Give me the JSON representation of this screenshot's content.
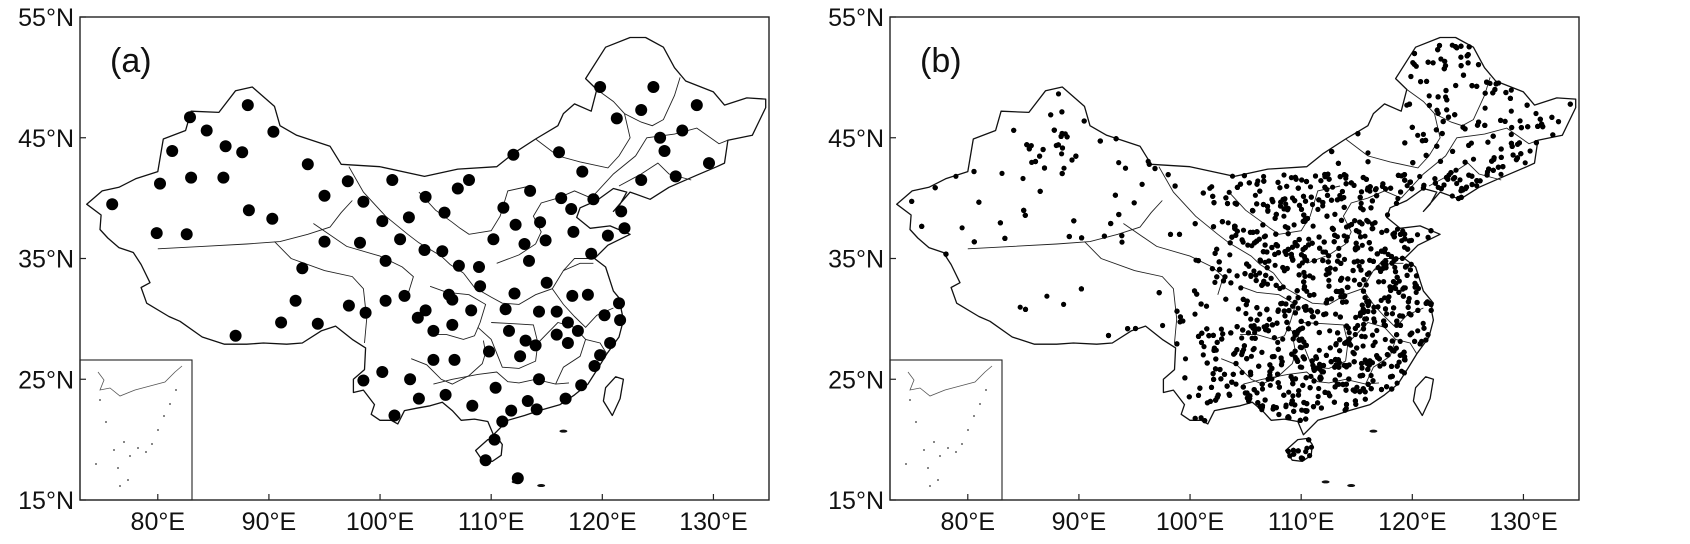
{
  "panels": [
    {
      "label": "(a)",
      "lat_ticks": [
        "55°N",
        "45°N",
        "35°N",
        "25°N",
        "15°N"
      ],
      "lon_ticks": [
        "80°E",
        "90°E",
        "100°E",
        "110°E",
        "120°E",
        "130°E"
      ]
    },
    {
      "label": "(b)",
      "lat_ticks": [
        "55°N",
        "45°N",
        "35°N",
        "25°N",
        "15°N"
      ],
      "lon_ticks": [
        "80°E",
        "90°E",
        "100°E",
        "110°E",
        "120°E",
        "130°E"
      ]
    }
  ],
  "map": {
    "lon_range": [
      73,
      135
    ],
    "lat_range": [
      15,
      55
    ],
    "lat_tick_values": [
      55,
      45,
      35,
      25,
      15
    ],
    "lon_tick_values": [
      80,
      90,
      100,
      110,
      120,
      130
    ],
    "colors": {
      "marker": "#000000",
      "land": "#ffffff",
      "boundary": "#111111"
    }
  },
  "stations_a": [
    [
      75.9,
      39.5
    ],
    [
      80.2,
      41.2
    ],
    [
      79.9,
      37.1
    ],
    [
      82.6,
      37.0
    ],
    [
      81.3,
      43.9
    ],
    [
      82.9,
      46.7
    ],
    [
      84.4,
      45.6
    ],
    [
      86.1,
      44.3
    ],
    [
      87.6,
      43.8
    ],
    [
      83.0,
      41.7
    ],
    [
      85.9,
      41.7
    ],
    [
      88.2,
      39.0
    ],
    [
      88.1,
      47.7
    ],
    [
      90.4,
      45.5
    ],
    [
      90.3,
      38.3
    ],
    [
      93.5,
      42.8
    ],
    [
      95.0,
      40.2
    ],
    [
      97.1,
      41.4
    ],
    [
      98.5,
      39.7
    ],
    [
      101.1,
      41.5
    ],
    [
      102.6,
      38.4
    ],
    [
      100.2,
      38.1
    ],
    [
      105.8,
      38.8
    ],
    [
      104.1,
      40.1
    ],
    [
      107.0,
      40.8
    ],
    [
      108.0,
      41.5
    ],
    [
      111.1,
      39.2
    ],
    [
      112.0,
      43.6
    ],
    [
      113.5,
      40.6
    ],
    [
      116.1,
      43.8
    ],
    [
      118.2,
      42.2
    ],
    [
      119.8,
      49.2
    ],
    [
      121.3,
      46.6
    ],
    [
      123.5,
      47.3
    ],
    [
      124.6,
      49.2
    ],
    [
      127.2,
      45.6
    ],
    [
      128.5,
      47.7
    ],
    [
      125.6,
      43.9
    ],
    [
      126.6,
      41.8
    ],
    [
      129.6,
      42.9
    ],
    [
      123.5,
      41.5
    ],
    [
      121.7,
      38.9
    ],
    [
      119.2,
      39.9
    ],
    [
      117.4,
      37.2
    ],
    [
      117.2,
      39.1
    ],
    [
      116.3,
      40.0
    ],
    [
      114.4,
      38.0
    ],
    [
      113.0,
      36.2
    ],
    [
      112.2,
      37.8
    ],
    [
      110.2,
      36.6
    ],
    [
      108.9,
      34.3
    ],
    [
      107.1,
      34.4
    ],
    [
      105.6,
      35.6
    ],
    [
      104.0,
      35.7
    ],
    [
      101.8,
      36.6
    ],
    [
      98.2,
      36.3
    ],
    [
      95.0,
      36.4
    ],
    [
      93.0,
      34.2
    ],
    [
      92.4,
      31.5
    ],
    [
      91.1,
      29.7
    ],
    [
      94.4,
      29.6
    ],
    [
      97.2,
      31.1
    ],
    [
      98.7,
      30.5
    ],
    [
      100.5,
      31.5
    ],
    [
      102.2,
      31.9
    ],
    [
      103.4,
      30.1
    ],
    [
      104.1,
      30.7
    ],
    [
      104.8,
      29.0
    ],
    [
      106.5,
      29.5
    ],
    [
      106.5,
      31.6
    ],
    [
      108.2,
      30.7
    ],
    [
      109.8,
      27.3
    ],
    [
      111.3,
      30.8
    ],
    [
      112.1,
      32.1
    ],
    [
      113.4,
      34.8
    ],
    [
      114.3,
      30.6
    ],
    [
      115.9,
      30.6
    ],
    [
      116.9,
      29.7
    ],
    [
      117.3,
      31.9
    ],
    [
      118.7,
      32.0
    ],
    [
      120.2,
      30.3
    ],
    [
      121.5,
      31.3
    ],
    [
      121.6,
      29.9
    ],
    [
      120.7,
      28.0
    ],
    [
      119.3,
      26.1
    ],
    [
      118.1,
      24.5
    ],
    [
      116.9,
      28.0
    ],
    [
      115.9,
      28.7
    ],
    [
      114.0,
      27.8
    ],
    [
      113.1,
      28.2
    ],
    [
      112.6,
      26.9
    ],
    [
      111.6,
      29.0
    ],
    [
      110.4,
      24.3
    ],
    [
      113.3,
      23.2
    ],
    [
      114.1,
      22.5
    ],
    [
      116.7,
      23.4
    ],
    [
      110.3,
      20.0
    ],
    [
      109.5,
      18.3
    ],
    [
      108.3,
      22.8
    ],
    [
      106.7,
      26.6
    ],
    [
      104.8,
      26.6
    ],
    [
      102.7,
      25.0
    ],
    [
      100.2,
      25.6
    ],
    [
      98.5,
      24.9
    ],
    [
      101.3,
      22.0
    ],
    [
      103.5,
      23.4
    ],
    [
      105.9,
      23.7
    ],
    [
      111.0,
      21.5
    ],
    [
      112.4,
      16.8
    ],
    [
      111.8,
      22.4
    ],
    [
      114.3,
      25.0
    ],
    [
      117.8,
      29.0
    ],
    [
      119.8,
      27.0
    ],
    [
      87.0,
      28.6
    ],
    [
      100.5,
      34.8
    ],
    [
      106.2,
      32.0
    ],
    [
      109.0,
      32.7
    ],
    [
      115.0,
      33.0
    ],
    [
      119.0,
      35.4
    ],
    [
      120.5,
      36.9
    ],
    [
      122.0,
      37.5
    ],
    [
      125.2,
      45.0
    ],
    [
      114.9,
      36.5
    ]
  ]
}
